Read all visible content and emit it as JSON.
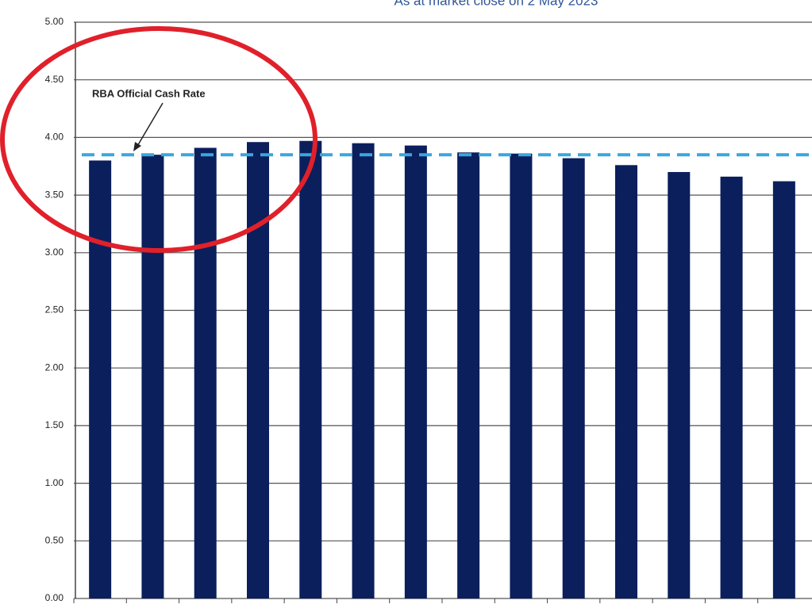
{
  "chart_data": {
    "type": "bar",
    "subtitle": "As at market close on 2 May 2023",
    "categories": [
      null,
      null,
      null,
      null,
      null,
      null,
      null,
      null,
      null,
      null,
      null,
      null,
      null,
      null
    ],
    "values": [
      3.8,
      3.85,
      3.91,
      3.96,
      3.97,
      3.95,
      3.93,
      3.87,
      3.86,
      3.82,
      3.76,
      3.7,
      3.66,
      3.62
    ],
    "color": "#0a1f5c",
    "ylim": [
      0,
      5
    ],
    "yticks": [
      {
        "value": 0,
        "label": "0.00"
      },
      {
        "value": 0.5,
        "label": "0.50"
      },
      {
        "value": 1,
        "label": "1.00"
      },
      {
        "value": 1.5,
        "label": "1.50"
      },
      {
        "value": 2,
        "label": "2.00"
      },
      {
        "value": 2.5,
        "label": "2.50"
      },
      {
        "value": 3,
        "label": "3.00"
      },
      {
        "value": 3.5,
        "label": "3.50"
      },
      {
        "value": 4,
        "label": "4.00"
      },
      {
        "value": 4.5,
        "label": "4.50"
      },
      {
        "value": 5,
        "label": "5.00"
      }
    ],
    "grid": true,
    "reference_line": {
      "label": "RBA Official Cash Rate",
      "value": 3.85,
      "color": "#3aa6dd"
    }
  }
}
